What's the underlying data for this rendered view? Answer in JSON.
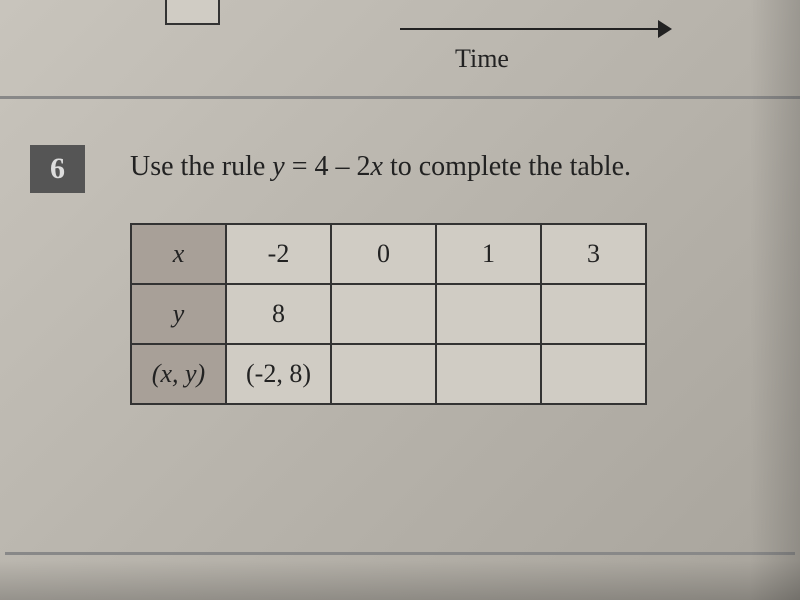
{
  "top": {
    "axis_label": "Time"
  },
  "question": {
    "number": "6",
    "instruction_prefix": "Use the rule ",
    "instruction_equation_y": "y",
    "instruction_eq_mid": " = 4 – 2",
    "instruction_equation_x": "x",
    "instruction_suffix": " to complete the table."
  },
  "table": {
    "row_headers": [
      "x",
      "y",
      "(x, y)"
    ],
    "columns": [
      {
        "x": "-2",
        "y": "8",
        "pair": "(-2, 8)"
      },
      {
        "x": "0",
        "y": "",
        "pair": ""
      },
      {
        "x": "1",
        "y": "",
        "pair": ""
      },
      {
        "x": "3",
        "y": "",
        "pair": ""
      }
    ]
  },
  "style": {
    "border_color": "#333333",
    "header_bg": "#a8a098",
    "cell_bg": "#d0ccc4",
    "text_color": "#222222",
    "number_box_bg": "#555555",
    "instruction_fontsize": 28,
    "cell_fontsize": 26
  }
}
